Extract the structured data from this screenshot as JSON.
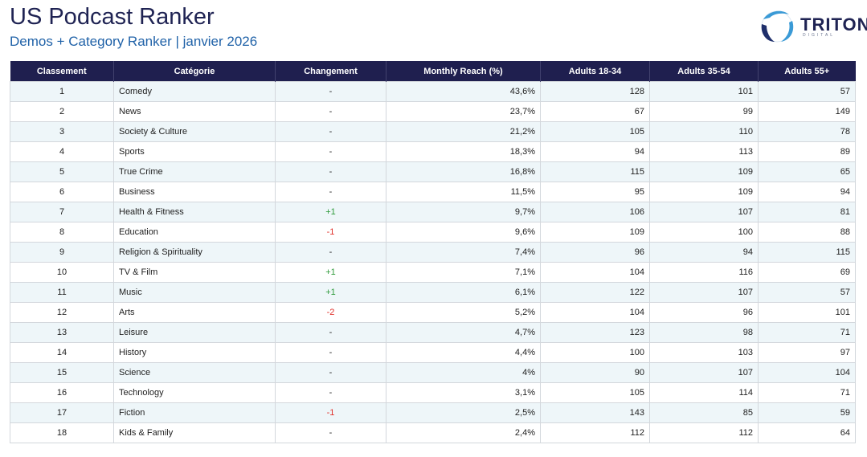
{
  "header": {
    "title": "US Podcast Ranker",
    "subtitle": "Demos + Category Ranker | janvier 2026",
    "logo_text": "TRITON",
    "logo_subtext": "DIGITAL"
  },
  "table": {
    "columns": [
      "Classement",
      "Catégorie",
      "Changement",
      "Monthly Reach (%)",
      "Adults 18-34",
      "Adults 35-54",
      "Adults 55+"
    ],
    "rows": [
      {
        "rank": "1",
        "category": "Comedy",
        "change": "-",
        "reach": "43,6%",
        "a1834": "128",
        "a3554": "101",
        "a55": "57"
      },
      {
        "rank": "2",
        "category": "News",
        "change": "-",
        "reach": "23,7%",
        "a1834": "67",
        "a3554": "99",
        "a55": "149"
      },
      {
        "rank": "3",
        "category": "Society & Culture",
        "change": "-",
        "reach": "21,2%",
        "a1834": "105",
        "a3554": "110",
        "a55": "78"
      },
      {
        "rank": "4",
        "category": "Sports",
        "change": "-",
        "reach": "18,3%",
        "a1834": "94",
        "a3554": "113",
        "a55": "89"
      },
      {
        "rank": "5",
        "category": "True Crime",
        "change": "-",
        "reach": "16,8%",
        "a1834": "115",
        "a3554": "109",
        "a55": "65"
      },
      {
        "rank": "6",
        "category": "Business",
        "change": "-",
        "reach": "11,5%",
        "a1834": "95",
        "a3554": "109",
        "a55": "94"
      },
      {
        "rank": "7",
        "category": "Health & Fitness",
        "change": "+1",
        "reach": "9,7%",
        "a1834": "106",
        "a3554": "107",
        "a55": "81"
      },
      {
        "rank": "8",
        "category": "Education",
        "change": "-1",
        "reach": "9,6%",
        "a1834": "109",
        "a3554": "100",
        "a55": "88"
      },
      {
        "rank": "9",
        "category": "Religion & Spirituality",
        "change": "-",
        "reach": "7,4%",
        "a1834": "96",
        "a3554": "94",
        "a55": "115"
      },
      {
        "rank": "10",
        "category": "TV & Film",
        "change": "+1",
        "reach": "7,1%",
        "a1834": "104",
        "a3554": "116",
        "a55": "69"
      },
      {
        "rank": "11",
        "category": "Music",
        "change": "+1",
        "reach": "6,1%",
        "a1834": "122",
        "a3554": "107",
        "a55": "57"
      },
      {
        "rank": "12",
        "category": "Arts",
        "change": "-2",
        "reach": "5,2%",
        "a1834": "104",
        "a3554": "96",
        "a55": "101"
      },
      {
        "rank": "13",
        "category": "Leisure",
        "change": "-",
        "reach": "4,7%",
        "a1834": "123",
        "a3554": "98",
        "a55": "71"
      },
      {
        "rank": "14",
        "category": "History",
        "change": "-",
        "reach": "4,4%",
        "a1834": "100",
        "a3554": "103",
        "a55": "97"
      },
      {
        "rank": "15",
        "category": "Science",
        "change": "-",
        "reach": "4%",
        "a1834": "90",
        "a3554": "107",
        "a55": "104"
      },
      {
        "rank": "16",
        "category": "Technology",
        "change": "-",
        "reach": "3,1%",
        "a1834": "105",
        "a3554": "114",
        "a55": "71"
      },
      {
        "rank": "17",
        "category": "Fiction",
        "change": "-1",
        "reach": "2,5%",
        "a1834": "143",
        "a3554": "85",
        "a55": "59"
      },
      {
        "rank": "18",
        "category": "Kids & Family",
        "change": "-",
        "reach": "2,4%",
        "a1834": "112",
        "a3554": "112",
        "a55": "64"
      }
    ]
  },
  "colors": {
    "header_bg": "#1f1f4f",
    "title": "#1f2353",
    "subtitle": "#2062a8",
    "row_alt": "#eef6f9",
    "positive": "#2e9a3a",
    "negative": "#e0302a"
  },
  "icons": {
    "logo": "triton-digital-logo"
  }
}
